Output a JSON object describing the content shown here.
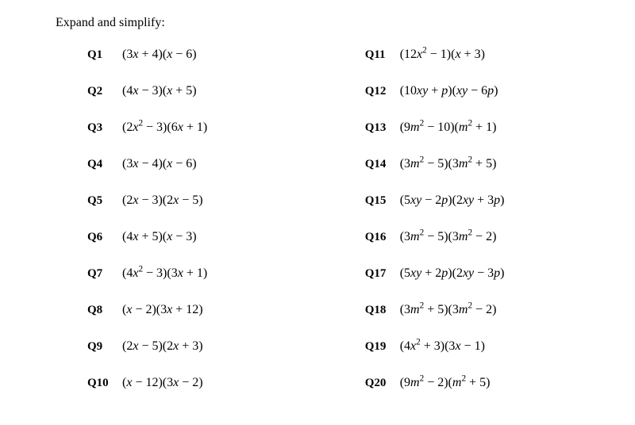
{
  "heading": "Expand and simplify:",
  "left": [
    {
      "q": "Q1",
      "expr": "(3<i>x</i> + 4)(<i>x</i> − 6)"
    },
    {
      "q": "Q2",
      "expr": "(4<i>x</i> − 3)(<i>x</i> + 5)"
    },
    {
      "q": "Q3",
      "expr": "(2<i>x</i><sup>2</sup> − 3)(6<i>x</i> + 1)"
    },
    {
      "q": "Q4",
      "expr": "(3<i>x</i> − 4)(<i>x</i> − 6)"
    },
    {
      "q": "Q5",
      "expr": "(2<i>x</i> − 3)(2<i>x</i> − 5)"
    },
    {
      "q": "Q6",
      "expr": "(4<i>x</i> + 5)(<i>x</i> − 3)"
    },
    {
      "q": "Q7",
      "expr": "(4<i>x</i><sup>2</sup> − 3)(3<i>x</i> + 1)"
    },
    {
      "q": "Q8",
      "expr": "(<i>x</i> − 2)(3<i>x</i> + 12)"
    },
    {
      "q": "Q9",
      "expr": "(2<i>x</i> − 5)(2<i>x</i> + 3)"
    },
    {
      "q": "Q10",
      "expr": "(<i>x</i> − 12)(3<i>x</i> − 2)"
    }
  ],
  "right": [
    {
      "q": "Q11",
      "expr": "(12<i>x</i><sup>2</sup> − 1)(<i>x</i> + 3)"
    },
    {
      "q": "Q12",
      "expr": "(10<i>xy</i> + <i>p</i>)(<i>xy</i> − 6<i>p</i>)"
    },
    {
      "q": "Q13",
      "expr": "(9<i>m</i><sup>2</sup> − 10)(<i>m</i><sup>2</sup> + 1)"
    },
    {
      "q": "Q14",
      "expr": "(3<i>m</i><sup>2</sup> − 5)(3<i>m</i><sup>2</sup> + 5)"
    },
    {
      "q": "Q15",
      "expr": "(5<i>xy</i> − 2<i>p</i>)(2<i>xy</i> + 3<i>p</i>)"
    },
    {
      "q": "Q16",
      "expr": "(3<i>m</i><sup>2</sup> − 5)(3<i>m</i><sup>2</sup> − 2)"
    },
    {
      "q": "Q17",
      "expr": "(5<i>xy</i> + 2<i>p</i>)(2<i>xy</i> − 3<i>p</i>)"
    },
    {
      "q": "Q18",
      "expr": "(3<i>m</i><sup>2</sup> + 5)(3<i>m</i><sup>2</sup> − 2)"
    },
    {
      "q": "Q19",
      "expr": "(4<i>x</i><sup>2</sup> + 3)(3<i>x</i> − 1)"
    },
    {
      "q": "Q20",
      "expr": "(9<i>m</i><sup>2</sup> − 2)(<i>m</i><sup>2</sup> + 5)"
    }
  ]
}
